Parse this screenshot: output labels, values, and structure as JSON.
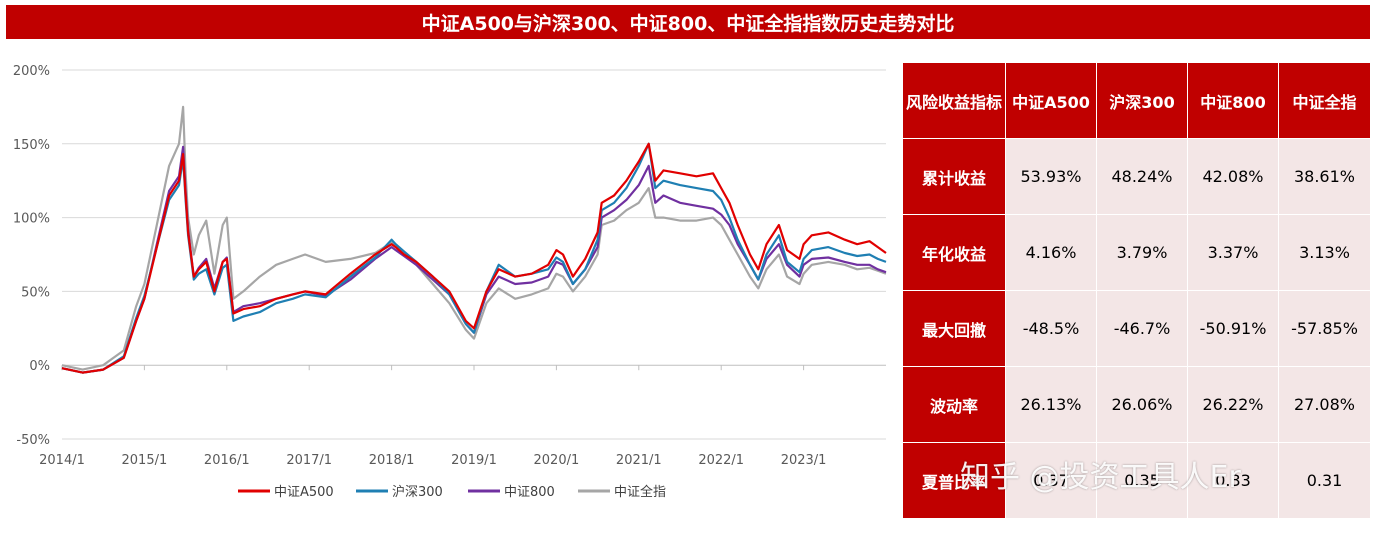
{
  "title": "中证A500与沪深300、中证800、中证全指指数历史走势对比",
  "watermark": "知乎 @投资工具人Er",
  "chart_data": {
    "type": "line",
    "x_ticks": [
      "2014/1",
      "2015/1",
      "2016/1",
      "2017/1",
      "2018/1",
      "2019/1",
      "2020/1",
      "2021/1",
      "2022/1",
      "2023/1"
    ],
    "y_ticks": [
      "200%",
      "150%",
      "100%",
      "50%",
      "0%",
      "-50%"
    ],
    "ylim": [
      -50,
      200
    ],
    "x_range": [
      2014.0,
      2024.0
    ],
    "grid": "horizontal",
    "legend_position": "bottom",
    "series": [
      {
        "name": "中证A500",
        "color": "#e10000",
        "x": [
          2014.0,
          2014.25,
          2014.5,
          2014.75,
          2014.9,
          2015.0,
          2015.15,
          2015.3,
          2015.42,
          2015.47,
          2015.5,
          2015.53,
          2015.6,
          2015.66,
          2015.75,
          2015.85,
          2015.95,
          2016.0,
          2016.08,
          2016.2,
          2016.4,
          2016.6,
          2016.8,
          2016.95,
          2017.2,
          2017.5,
          2017.8,
          2018.0,
          2018.05,
          2018.15,
          2018.3,
          2018.5,
          2018.7,
          2018.9,
          2019.0,
          2019.15,
          2019.3,
          2019.5,
          2019.7,
          2019.9,
          2020.0,
          2020.08,
          2020.2,
          2020.35,
          2020.5,
          2020.55,
          2020.7,
          2020.85,
          2021.0,
          2021.12,
          2021.2,
          2021.3,
          2021.5,
          2021.7,
          2021.9,
          2022.0,
          2022.1,
          2022.2,
          2022.35,
          2022.45,
          2022.55,
          2022.7,
          2022.8,
          2022.95,
          2023.0,
          2023.1,
          2023.3,
          2023.5,
          2023.65,
          2023.8,
          2023.9,
          2024.0
        ],
        "y": [
          -2,
          -5,
          -3,
          5,
          30,
          45,
          80,
          115,
          125,
          143,
          115,
          90,
          60,
          65,
          70,
          50,
          70,
          72,
          35,
          38,
          40,
          45,
          48,
          50,
          48,
          62,
          75,
          82,
          80,
          75,
          70,
          60,
          50,
          30,
          25,
          50,
          65,
          60,
          62,
          68,
          78,
          75,
          60,
          72,
          90,
          110,
          115,
          125,
          138,
          150,
          125,
          132,
          130,
          128,
          130,
          120,
          110,
          95,
          75,
          65,
          82,
          95,
          78,
          72,
          82,
          88,
          90,
          85,
          82,
          84,
          80,
          76
        ]
      },
      {
        "name": "沪深300",
        "color": "#1f7fb3",
        "x": [
          2014.0,
          2014.25,
          2014.5,
          2014.75,
          2014.9,
          2015.0,
          2015.15,
          2015.3,
          2015.42,
          2015.47,
          2015.5,
          2015.53,
          2015.6,
          2015.66,
          2015.75,
          2015.85,
          2015.95,
          2016.0,
          2016.08,
          2016.2,
          2016.4,
          2016.6,
          2016.8,
          2016.95,
          2017.2,
          2017.5,
          2017.8,
          2018.0,
          2018.05,
          2018.15,
          2018.3,
          2018.5,
          2018.7,
          2018.9,
          2019.0,
          2019.15,
          2019.3,
          2019.5,
          2019.7,
          2019.9,
          2020.0,
          2020.08,
          2020.2,
          2020.35,
          2020.5,
          2020.55,
          2020.7,
          2020.85,
          2021.0,
          2021.12,
          2021.2,
          2021.3,
          2021.5,
          2021.7,
          2021.9,
          2022.0,
          2022.1,
          2022.2,
          2022.35,
          2022.45,
          2022.55,
          2022.7,
          2022.8,
          2022.95,
          2023.0,
          2023.1,
          2023.3,
          2023.5,
          2023.65,
          2023.8,
          2023.9,
          2024.0
        ],
        "y": [
          -2,
          -5,
          -3,
          6,
          32,
          47,
          80,
          112,
          122,
          140,
          112,
          88,
          58,
          62,
          65,
          48,
          66,
          68,
          30,
          33,
          36,
          42,
          45,
          48,
          46,
          60,
          73,
          85,
          82,
          77,
          70,
          60,
          48,
          28,
          22,
          50,
          68,
          60,
          62,
          65,
          73,
          70,
          55,
          65,
          85,
          105,
          110,
          120,
          135,
          150,
          120,
          125,
          122,
          120,
          118,
          112,
          100,
          85,
          68,
          58,
          75,
          88,
          70,
          63,
          72,
          78,
          80,
          76,
          74,
          75,
          72,
          70
        ]
      },
      {
        "name": "中证800",
        "color": "#7030a0",
        "x": [
          2014.0,
          2014.25,
          2014.5,
          2014.75,
          2014.9,
          2015.0,
          2015.15,
          2015.3,
          2015.42,
          2015.47,
          2015.5,
          2015.53,
          2015.6,
          2015.66,
          2015.75,
          2015.85,
          2015.95,
          2016.0,
          2016.08,
          2016.2,
          2016.4,
          2016.6,
          2016.8,
          2016.95,
          2017.2,
          2017.5,
          2017.8,
          2018.0,
          2018.05,
          2018.15,
          2018.3,
          2018.5,
          2018.7,
          2018.9,
          2019.0,
          2019.15,
          2019.3,
          2019.5,
          2019.7,
          2019.9,
          2020.0,
          2020.08,
          2020.2,
          2020.35,
          2020.5,
          2020.55,
          2020.7,
          2020.85,
          2021.0,
          2021.12,
          2021.2,
          2021.3,
          2021.5,
          2021.7,
          2021.9,
          2022.0,
          2022.1,
          2022.2,
          2022.35,
          2022.45,
          2022.55,
          2022.7,
          2022.8,
          2022.95,
          2023.0,
          2023.1,
          2023.3,
          2023.5,
          2023.65,
          2023.8,
          2023.9,
          2024.0
        ],
        "y": [
          -2,
          -5,
          -3,
          5,
          30,
          45,
          82,
          118,
          128,
          148,
          118,
          92,
          60,
          66,
          72,
          52,
          70,
          73,
          36,
          40,
          42,
          45,
          48,
          50,
          47,
          58,
          72,
          80,
          78,
          74,
          68,
          58,
          48,
          28,
          22,
          48,
          60,
          55,
          56,
          60,
          70,
          68,
          55,
          65,
          80,
          100,
          105,
          112,
          122,
          135,
          110,
          115,
          110,
          108,
          106,
          102,
          95,
          82,
          68,
          58,
          72,
          82,
          68,
          60,
          68,
          72,
          73,
          70,
          68,
          68,
          65,
          63
        ]
      },
      {
        "name": "中证全指",
        "color": "#a6a6a6",
        "x": [
          2014.0,
          2014.25,
          2014.5,
          2014.75,
          2014.9,
          2015.0,
          2015.15,
          2015.3,
          2015.42,
          2015.47,
          2015.5,
          2015.53,
          2015.6,
          2015.66,
          2015.75,
          2015.85,
          2015.95,
          2016.0,
          2016.08,
          2016.2,
          2016.4,
          2016.6,
          2016.8,
          2016.95,
          2017.2,
          2017.5,
          2017.8,
          2018.0,
          2018.05,
          2018.15,
          2018.3,
          2018.5,
          2018.7,
          2018.9,
          2019.0,
          2019.15,
          2019.3,
          2019.5,
          2019.7,
          2019.9,
          2020.0,
          2020.08,
          2020.2,
          2020.35,
          2020.5,
          2020.55,
          2020.7,
          2020.85,
          2021.0,
          2021.12,
          2021.2,
          2021.3,
          2021.5,
          2021.7,
          2021.9,
          2022.0,
          2022.1,
          2022.2,
          2022.35,
          2022.45,
          2022.55,
          2022.7,
          2022.8,
          2022.95,
          2023.0,
          2023.1,
          2023.3,
          2023.5,
          2023.65,
          2023.8,
          2023.9,
          2024.0
        ],
        "y": [
          0,
          -3,
          0,
          10,
          40,
          55,
          95,
          135,
          150,
          175,
          130,
          100,
          75,
          88,
          98,
          62,
          95,
          100,
          45,
          50,
          60,
          68,
          72,
          75,
          70,
          72,
          76,
          83,
          80,
          75,
          68,
          55,
          42,
          24,
          18,
          42,
          52,
          45,
          48,
          52,
          62,
          60,
          50,
          60,
          75,
          95,
          98,
          105,
          110,
          120,
          100,
          100,
          98,
          98,
          100,
          95,
          85,
          75,
          60,
          52,
          65,
          75,
          60,
          55,
          62,
          68,
          70,
          68,
          65,
          66,
          64,
          62
        ]
      }
    ]
  },
  "table": {
    "header_metric": "风险收益指标",
    "columns": [
      "中证A500",
      "沪深300",
      "中证800",
      "中证全指"
    ],
    "rows": [
      {
        "label": "累计收益",
        "values": [
          "53.93%",
          "48.24%",
          "42.08%",
          "38.61%"
        ]
      },
      {
        "label": "年化收益",
        "values": [
          "4.16%",
          "3.79%",
          "3.37%",
          "3.13%"
        ]
      },
      {
        "label": "最大回撤",
        "values": [
          "-48.5%",
          "-46.7%",
          "-50.91%",
          "-57.85%"
        ]
      },
      {
        "label": "波动率",
        "values": [
          "26.13%",
          "26.06%",
          "26.22%",
          "27.08%"
        ]
      },
      {
        "label": "夏普比率",
        "values": [
          "0.37",
          "0.35",
          "0.33",
          "0.31"
        ]
      }
    ]
  }
}
